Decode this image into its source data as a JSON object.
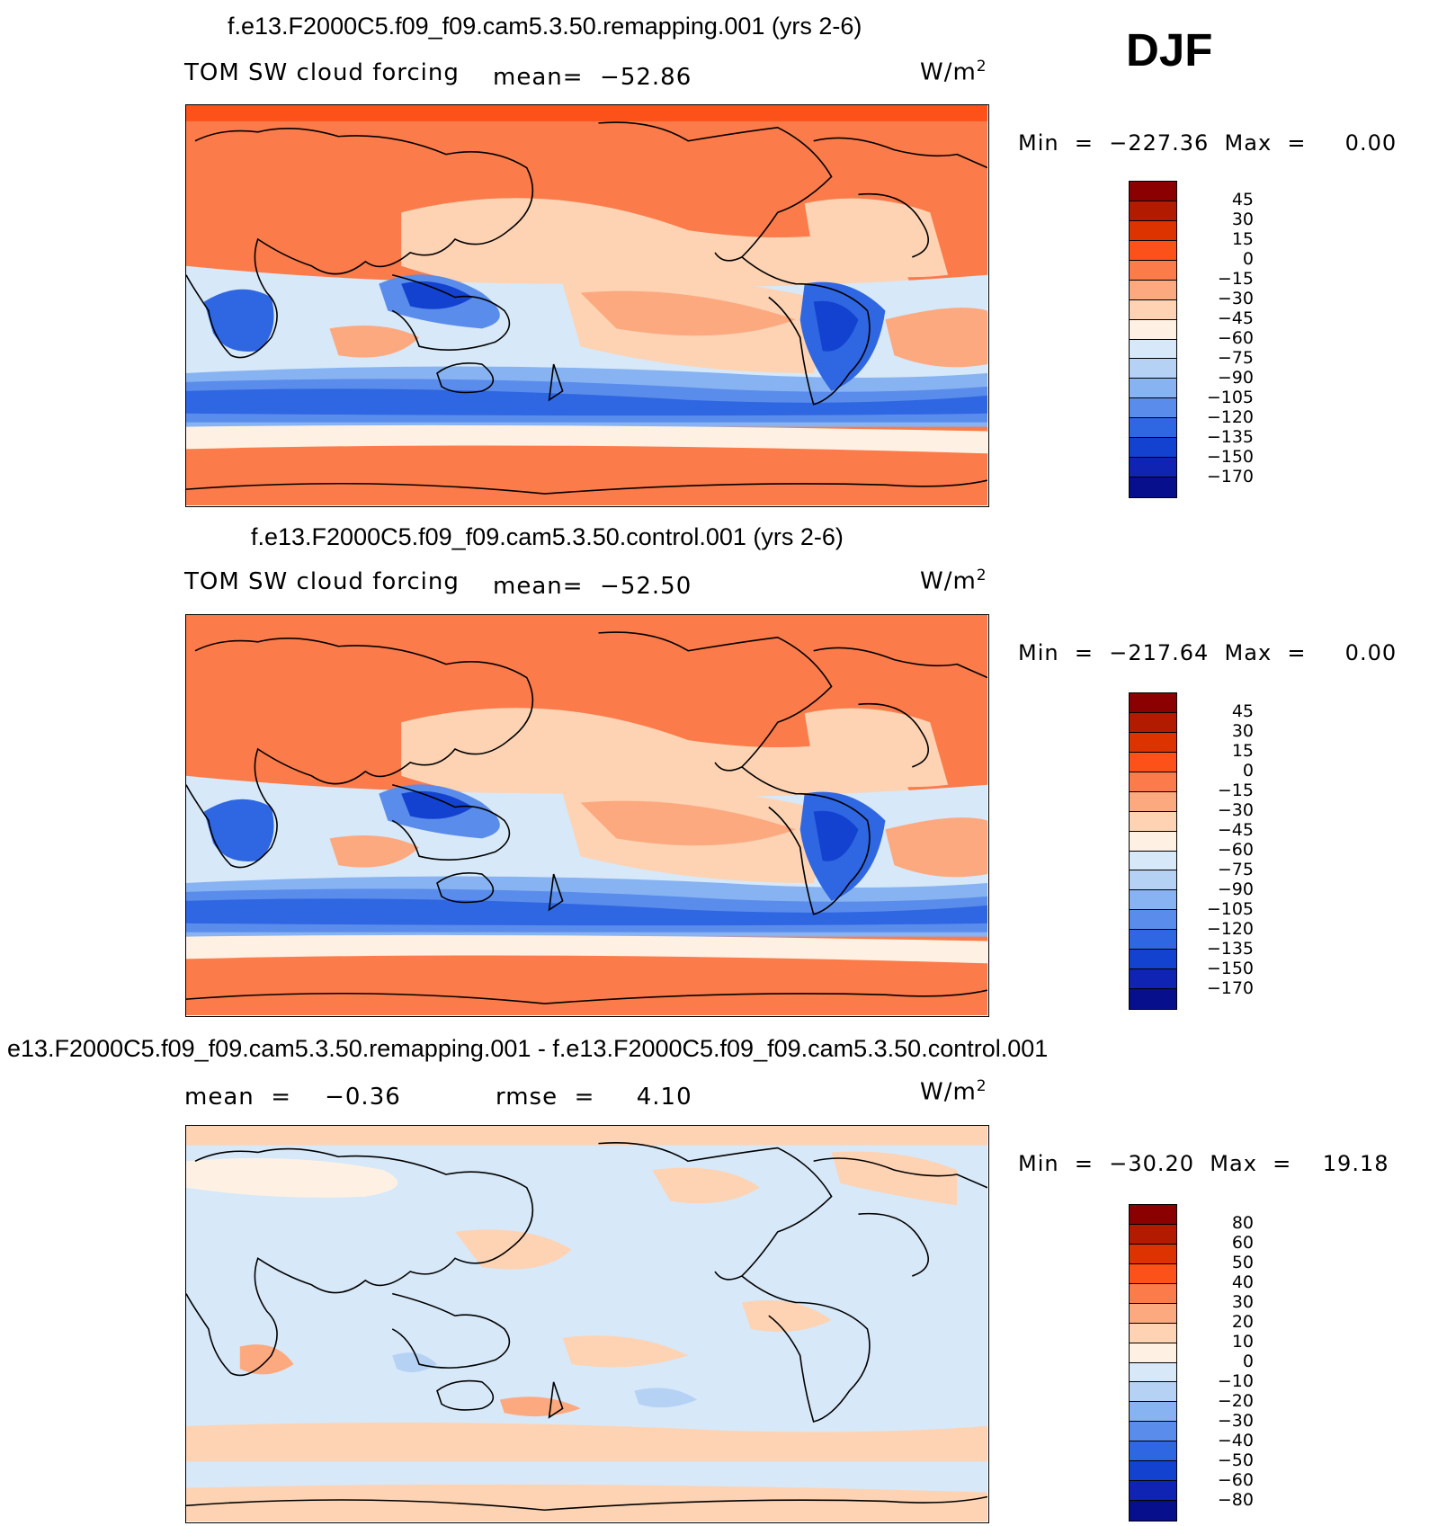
{
  "season": "DJF",
  "panels": [
    {
      "id": "remap",
      "title": "f.e13.F2000C5.f09_f09.cam5.3.50.remapping.001 (yrs 2-6)",
      "left_label": "TOM SW cloud forcing",
      "mid_label": "mean=  −52.86",
      "units": "W/m",
      "units_sup": "2",
      "minmax": "Min  =  −227.36  Max  =     0.00",
      "colorbar_levels": [
        "45",
        "30",
        "15",
        "0",
        "−15",
        "−30",
        "−45",
        "−60",
        "−75",
        "−90",
        "−105",
        "−120",
        "−135",
        "−150",
        "−170"
      ],
      "colorbar_colors": [
        "#8b0000",
        "#b31b00",
        "#dc3300",
        "#fc5119",
        "#fb7b4a",
        "#fca980",
        "#fdd3b4",
        "#fef1e4",
        "#d7e8f8",
        "#b5d2f5",
        "#87b3f2",
        "#5a8ceb",
        "#2f66e1",
        "#1442d0",
        "#0f24b2",
        "#070f8c"
      ]
    },
    {
      "id": "control",
      "title": "f.e13.F2000C5.f09_f09.cam5.3.50.control.001 (yrs 2-6)",
      "left_label": "TOM SW cloud forcing",
      "mid_label": "mean=  −52.50",
      "units": "W/m",
      "units_sup": "2",
      "minmax": "Min  =  −217.64  Max  =     0.00",
      "colorbar_levels": [
        "45",
        "30",
        "15",
        "0",
        "−15",
        "−30",
        "−45",
        "−60",
        "−75",
        "−90",
        "−105",
        "−120",
        "−135",
        "−150",
        "−170"
      ],
      "colorbar_colors": [
        "#8b0000",
        "#b31b00",
        "#dc3300",
        "#fc5119",
        "#fb7b4a",
        "#fca980",
        "#fdd3b4",
        "#fef1e4",
        "#d7e8f8",
        "#b5d2f5",
        "#87b3f2",
        "#5a8ceb",
        "#2f66e1",
        "#1442d0",
        "#0f24b2",
        "#070f8c"
      ]
    },
    {
      "id": "diff",
      "title": "e13.F2000C5.f09_f09.cam5.3.50.remapping.001 - f.e13.F2000C5.f09_f09.cam5.3.50.control.001",
      "left_label": "mean  =    −0.36",
      "mid_label": "rmse  =     4.10",
      "units": "W/m",
      "units_sup": "2",
      "minmax": "Min  =  −30.20  Max  =    19.18",
      "colorbar_levels": [
        "80",
        "60",
        "50",
        "40",
        "30",
        "20",
        "10",
        "0",
        "−10",
        "−20",
        "−30",
        "−40",
        "−50",
        "−60",
        "−80"
      ],
      "colorbar_colors": [
        "#8b0000",
        "#b31b00",
        "#dc3300",
        "#fc5119",
        "#fb7b4a",
        "#fca980",
        "#fdd3b4",
        "#fef1e4",
        "#d7e8f8",
        "#b5d2f5",
        "#87b3f2",
        "#5a8ceb",
        "#2f66e1",
        "#1442d0",
        "#0f24b2",
        "#070f8c"
      ]
    }
  ]
}
